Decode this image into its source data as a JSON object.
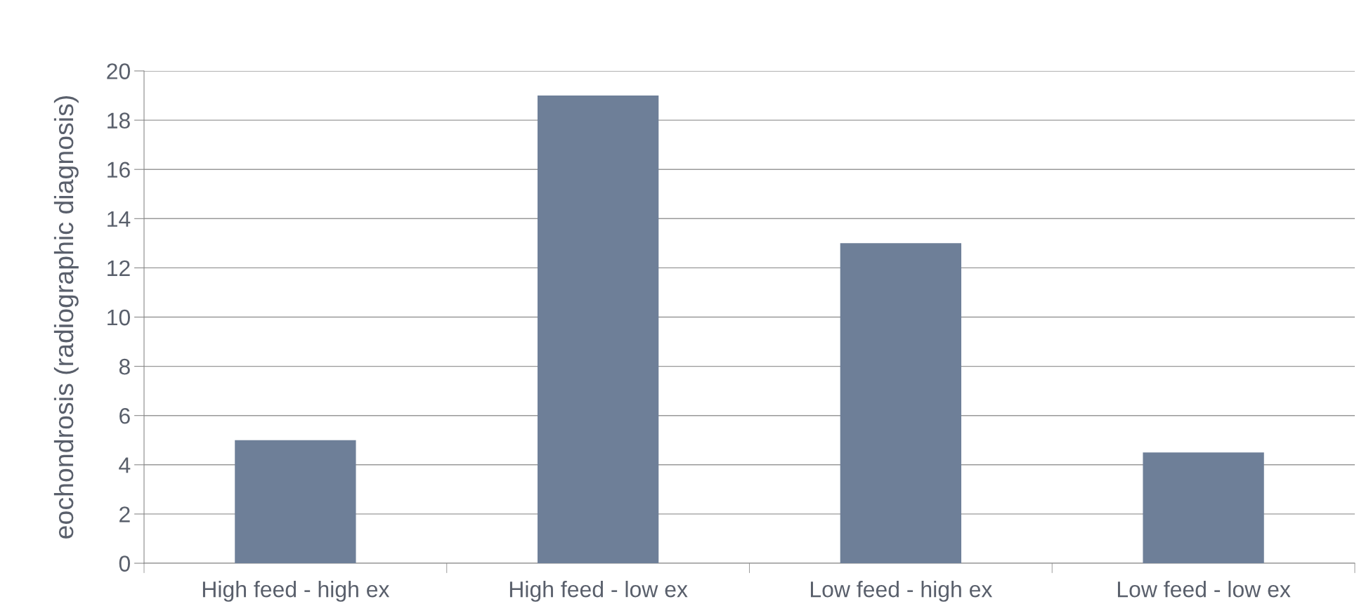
{
  "chart_data": {
    "type": "bar",
    "ylabel": "eochondrosis (radiographic diagnosis)",
    "categories": [
      "High feed - high ex",
      "High feed - low ex",
      "Low feed - high ex",
      "Low feed - low ex"
    ],
    "values": [
      5,
      19,
      13,
      4.5
    ],
    "color": "#6e7f98",
    "ylim": [
      0,
      20
    ],
    "yticks": [
      0,
      2,
      4,
      6,
      8,
      10,
      12,
      14,
      16,
      18,
      20
    ],
    "grid": "y",
    "legend": false
  }
}
